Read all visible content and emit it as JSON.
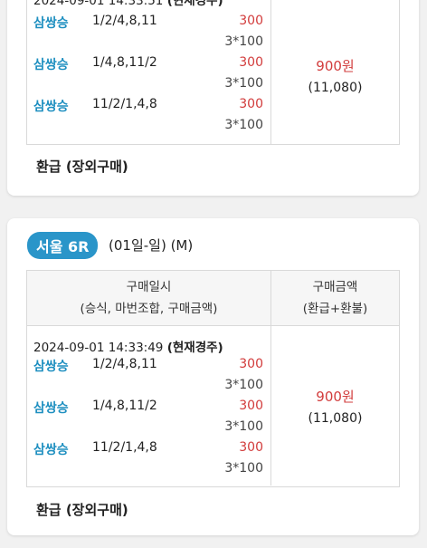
{
  "card1": {
    "timestamp": "2024-09-01 14:33:51",
    "timestamp_tag": "(현재경주)",
    "bets": [
      {
        "type": "삼쌍승",
        "combo": "1/2/4,8,11",
        "amount": "300",
        "mult": "3*100"
      },
      {
        "type": "삼쌍승",
        "combo": "1/4,8,11/2",
        "amount": "300",
        "mult": "3*100"
      },
      {
        "type": "삼쌍승",
        "combo": "11/2/1,4,8",
        "amount": "300",
        "mult": "3*100"
      }
    ],
    "total": "900원",
    "total_sub": "(11,080)",
    "refund": "환급 (장외구매)"
  },
  "card2": {
    "race_badge": "서울 6R",
    "race_date": "(01일-일) (M)",
    "header_left_line1": "구매일시",
    "header_left_line2": "(승식, 마번조합, 구매금액)",
    "header_right_line1": "구매금액",
    "header_right_line2": "(환급+환불)",
    "timestamp": "2024-09-01 14:33:49",
    "timestamp_tag": "(현재경주)",
    "bets": [
      {
        "type": "삼쌍승",
        "combo": "1/2/4,8,11",
        "amount": "300",
        "mult": "3*100"
      },
      {
        "type": "삼쌍승",
        "combo": "1/4,8,11/2",
        "amount": "300",
        "mult": "3*100"
      },
      {
        "type": "삼쌍승",
        "combo": "11/2/1,4,8",
        "amount": "300",
        "mult": "3*100"
      }
    ],
    "total": "900원",
    "total_sub": "(11,080)",
    "refund": "환급 (장외구매)"
  }
}
